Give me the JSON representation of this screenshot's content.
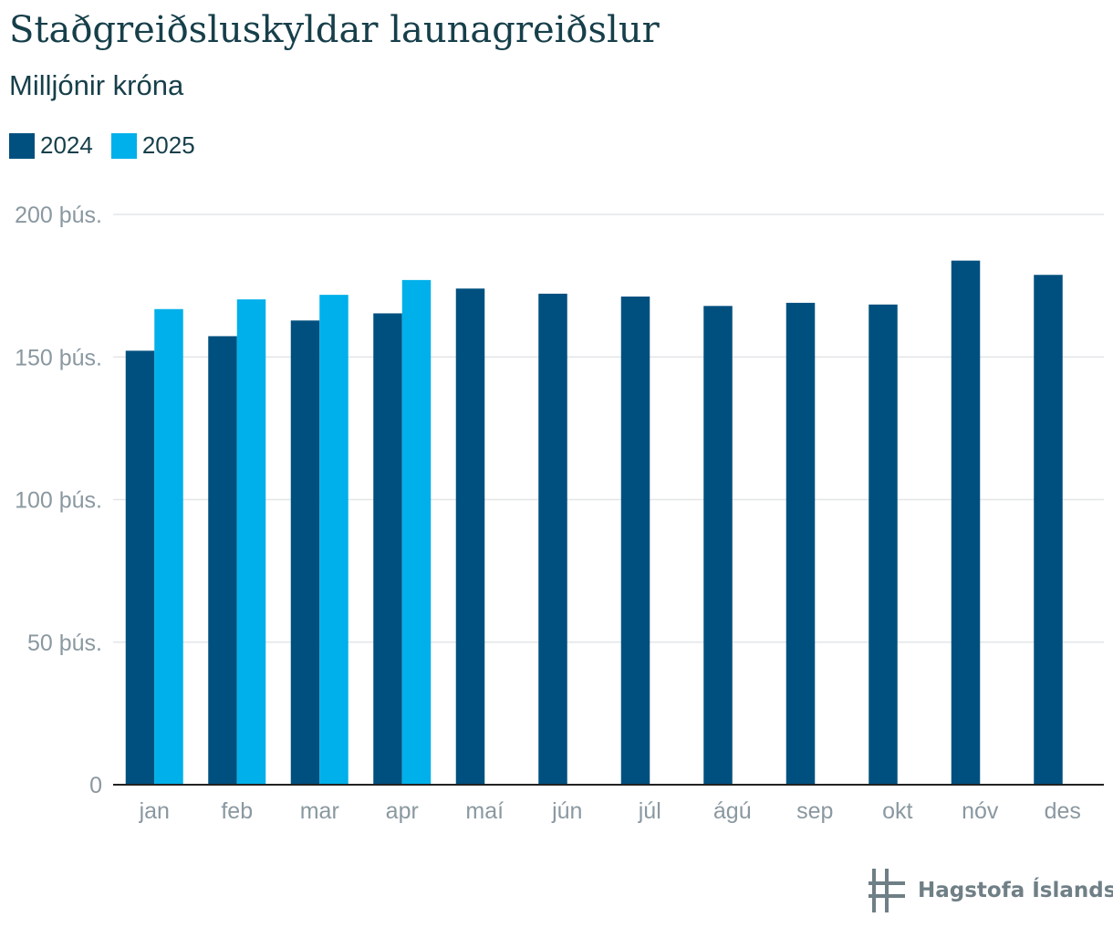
{
  "title": "Staðgreiðsluskyldar launagreiðslur",
  "subtitle": "Milljónir króna",
  "colors": {
    "2024": "#00507f",
    "2025": "#00b0ea",
    "grid": "#e2e6e8",
    "axis": "#222222",
    "tick_text": "#8a98a0",
    "title": "#163f4a"
  },
  "legend": [
    {
      "label": "2024",
      "color": "#00507f"
    },
    {
      "label": "2025",
      "color": "#00b0ea"
    }
  ],
  "logo": {
    "text": "Hagstofa Íslands",
    "icon": "hagstofa-logo-icon"
  },
  "chart_data": {
    "type": "bar",
    "categories": [
      "jan",
      "feb",
      "mar",
      "apr",
      "maí",
      "jún",
      "júl",
      "ágú",
      "sep",
      "okt",
      "nóv",
      "des"
    ],
    "series": [
      {
        "name": "2024",
        "values": [
          152200,
          157300,
          162800,
          165300,
          174000,
          172200,
          171200,
          167900,
          169000,
          168400,
          183800,
          178800
        ]
      },
      {
        "name": "2025",
        "values": [
          166800,
          170200,
          171800,
          177000,
          null,
          null,
          null,
          null,
          null,
          null,
          null,
          null
        ]
      }
    ],
    "ylim": [
      0,
      200000
    ],
    "yticks": [
      0,
      50000,
      100000,
      150000,
      200000
    ],
    "ytick_labels": [
      "0",
      "50 þús.",
      "100 þús.",
      "150 þús.",
      "200 þús."
    ],
    "grid": true,
    "legend_position": "top-left"
  }
}
